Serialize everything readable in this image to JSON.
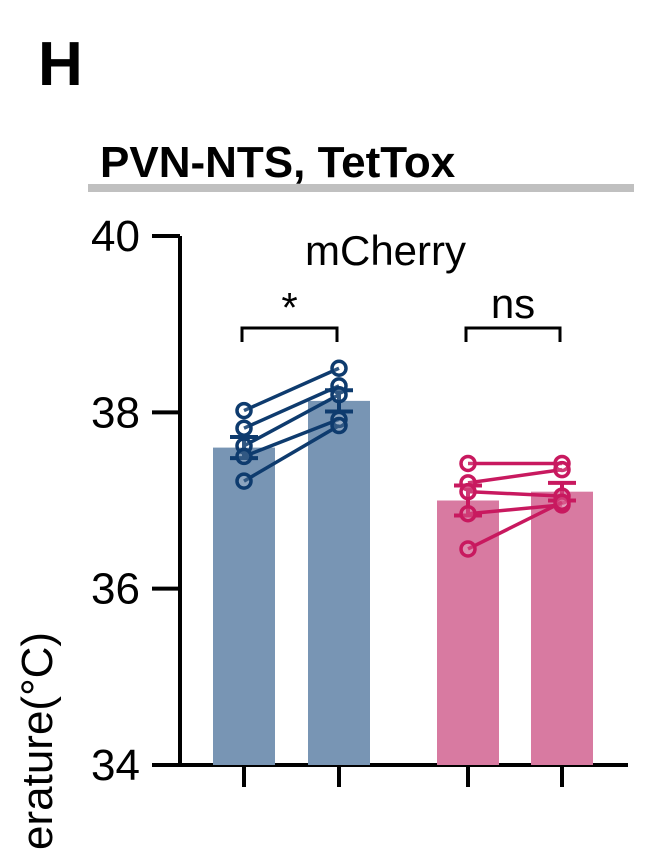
{
  "panel_label": "H",
  "title": "PVN-NTS, TetTox",
  "colors": {
    "bar_blue": "#7895b4",
    "line_blue": "#0e3b6e",
    "bar_pink": "#d87aa1",
    "line_pink": "#c8195f",
    "divider": "#c0c0c0"
  },
  "chart_data": {
    "type": "bar",
    "title": "PVN-NTS, TetTox",
    "ylabel": "erature(°C)",
    "ylim": [
      34,
      40
    ],
    "yticks": [
      "34",
      "36",
      "38",
      "40"
    ],
    "legend": "mCherry",
    "bars": [
      {
        "group": "mCherry-1",
        "value": 37.6,
        "sem": 0.12,
        "color": "bar_blue"
      },
      {
        "group": "mCherry-1",
        "value": 38.13,
        "sem": 0.12,
        "color": "bar_blue"
      },
      {
        "group": "mCherry-2",
        "value": 37.0,
        "sem": 0.17,
        "color": "bar_pink"
      },
      {
        "group": "mCherry-2",
        "value": 37.1,
        "sem": 0.1,
        "color": "bar_pink"
      }
    ],
    "paired_points": [
      {
        "group": 0,
        "pairs": [
          [
            38.02,
            38.5
          ],
          [
            37.82,
            38.3
          ],
          [
            37.62,
            38.2
          ],
          [
            37.5,
            37.92
          ],
          [
            37.22,
            37.85
          ]
        ]
      },
      {
        "group": 1,
        "pairs": [
          [
            37.42,
            37.42
          ],
          [
            37.2,
            37.35
          ],
          [
            37.1,
            37.05
          ],
          [
            36.85,
            36.95
          ],
          [
            36.45,
            36.98
          ]
        ]
      }
    ],
    "significance": [
      "*",
      "ns"
    ]
  }
}
